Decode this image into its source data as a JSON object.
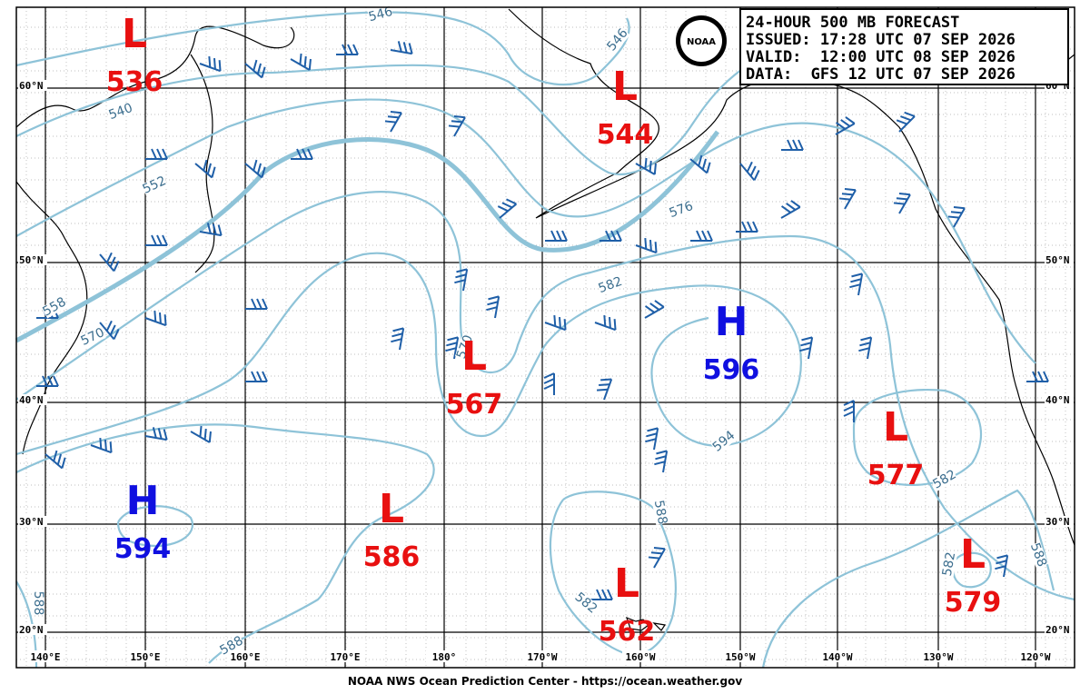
{
  "header": {
    "lines": [
      "24-HOUR 500 MB FORECAST",
      "ISSUED: 17:28 UTC 07 SEP 2026",
      "VALID:  12:00 UTC 08 SEP 2026",
      "DATA:  GFS 12 UTC 07 SEP 2026"
    ]
  },
  "logo": {
    "text": "NOAA"
  },
  "centers": [
    {
      "letter": "L",
      "value": 536
    },
    {
      "letter": "L",
      "value": 544
    },
    {
      "letter": "L",
      "value": 567
    },
    {
      "letter": "H",
      "value": 596
    },
    {
      "letter": "L",
      "value": 577
    },
    {
      "letter": "H",
      "value": 594
    },
    {
      "letter": "L",
      "value": 586
    },
    {
      "letter": "L",
      "value": 562
    },
    {
      "letter": "L",
      "value": 579
    }
  ],
  "contour_labels": [
    546,
    546,
    540,
    552,
    558,
    570,
    570,
    576,
    582,
    594,
    582,
    588,
    582,
    582,
    588,
    588,
    588
  ],
  "lat_labels": [
    "60°N",
    "50°N",
    "40°N",
    "30°N",
    "20°N"
  ],
  "lon_labels": [
    "140°E",
    "150°E",
    "160°E",
    "170°E",
    "180°",
    "170°W",
    "160°W",
    "150°W",
    "140°W",
    "130°W",
    "120°W"
  ],
  "footer": "NOAA NWS Ocean Prediction Center - https://ocean.weather.gov"
}
